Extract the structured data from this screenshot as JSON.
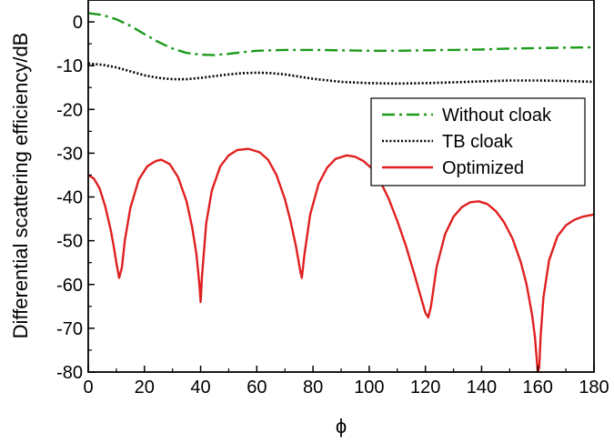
{
  "chart_data": {
    "type": "line",
    "xlabel": "ϕ",
    "ylabel": "Differential scattering efficiency/dB",
    "xlim": [
      0,
      180
    ],
    "ylim": [
      -80,
      5
    ],
    "xticks": [
      0,
      20,
      40,
      60,
      80,
      100,
      120,
      140,
      160,
      180
    ],
    "yticks": [
      0,
      -10,
      -20,
      -30,
      -40,
      -50,
      -60,
      -70,
      -80
    ],
    "grid": false,
    "legend_position": "right",
    "series": [
      {
        "name": "Without cloak",
        "color": "#1a9a1a",
        "style": "dash-dot",
        "x": [
          0,
          5,
          10,
          15,
          20,
          25,
          30,
          35,
          40,
          45,
          50,
          55,
          60,
          70,
          80,
          90,
          100,
          110,
          120,
          130,
          140,
          150,
          160,
          170,
          180
        ],
        "y": [
          2,
          1.6,
          0.6,
          -0.9,
          -2.8,
          -4.6,
          -6.1,
          -7.1,
          -7.5,
          -7.6,
          -7.3,
          -6.9,
          -6.6,
          -6.4,
          -6.4,
          -6.5,
          -6.6,
          -6.6,
          -6.5,
          -6.4,
          -6.3,
          -6.1,
          -6.0,
          -5.9,
          -5.8
        ]
      },
      {
        "name": "TB cloak",
        "color": "#000000",
        "style": "dotted",
        "x": [
          0,
          5,
          10,
          15,
          20,
          25,
          30,
          35,
          40,
          45,
          50,
          55,
          60,
          65,
          70,
          75,
          80,
          90,
          100,
          110,
          120,
          130,
          140,
          150,
          160,
          170,
          180
        ],
        "y": [
          -9.5,
          -9.8,
          -10.4,
          -11.3,
          -12.2,
          -12.8,
          -13.1,
          -13.1,
          -12.8,
          -12.4,
          -12.0,
          -11.7,
          -11.6,
          -11.7,
          -12.0,
          -12.5,
          -13.0,
          -13.7,
          -14.0,
          -14.1,
          -14.0,
          -13.8,
          -13.6,
          -13.4,
          -13.4,
          -13.5,
          -13.7
        ]
      },
      {
        "name": "Optimized",
        "color": "#e02020",
        "style": "solid",
        "x": [
          0,
          2,
          4,
          6,
          8,
          9,
          10,
          11,
          12,
          13,
          15,
          18,
          21,
          24,
          26,
          29,
          32,
          35,
          37,
          38.5,
          39.5,
          40,
          40.5,
          42,
          44,
          47,
          50,
          53,
          57,
          61,
          64,
          67,
          70,
          72,
          74,
          75.5,
          76,
          77,
          79,
          82,
          85,
          88,
          92,
          95,
          98,
          101,
          104,
          107,
          110,
          113,
          116,
          118,
          120,
          121,
          122,
          124,
          127,
          130,
          133,
          136,
          139,
          142,
          145,
          148,
          151,
          154,
          156,
          158,
          159,
          160,
          160.5,
          161,
          162,
          164,
          167,
          170,
          173,
          176,
          180
        ],
        "y": [
          -35,
          -35.8,
          -38,
          -42,
          -47.5,
          -51,
          -55,
          -58.5,
          -56,
          -50,
          -42.5,
          -36,
          -33,
          -31.8,
          -31.5,
          -32.5,
          -35.5,
          -41,
          -47,
          -53,
          -59.5,
          -64,
          -58,
          -46,
          -38.5,
          -33,
          -30.5,
          -29.3,
          -29,
          -29.8,
          -31.5,
          -35,
          -40.5,
          -45.5,
          -51.5,
          -57,
          -58.5,
          -53,
          -44,
          -37,
          -33.3,
          -31.3,
          -30.5,
          -30.8,
          -31.8,
          -33.5,
          -36.5,
          -40.5,
          -45.5,
          -51,
          -57.5,
          -62,
          -66.5,
          -67.5,
          -65,
          -56,
          -48.5,
          -44.5,
          -42.3,
          -41.2,
          -41,
          -41.6,
          -43.2,
          -45.8,
          -49.5,
          -55,
          -60,
          -67,
          -72,
          -80,
          -79,
          -72,
          -63,
          -54.5,
          -49,
          -46.5,
          -45.2,
          -44.5,
          -44
        ]
      }
    ]
  }
}
